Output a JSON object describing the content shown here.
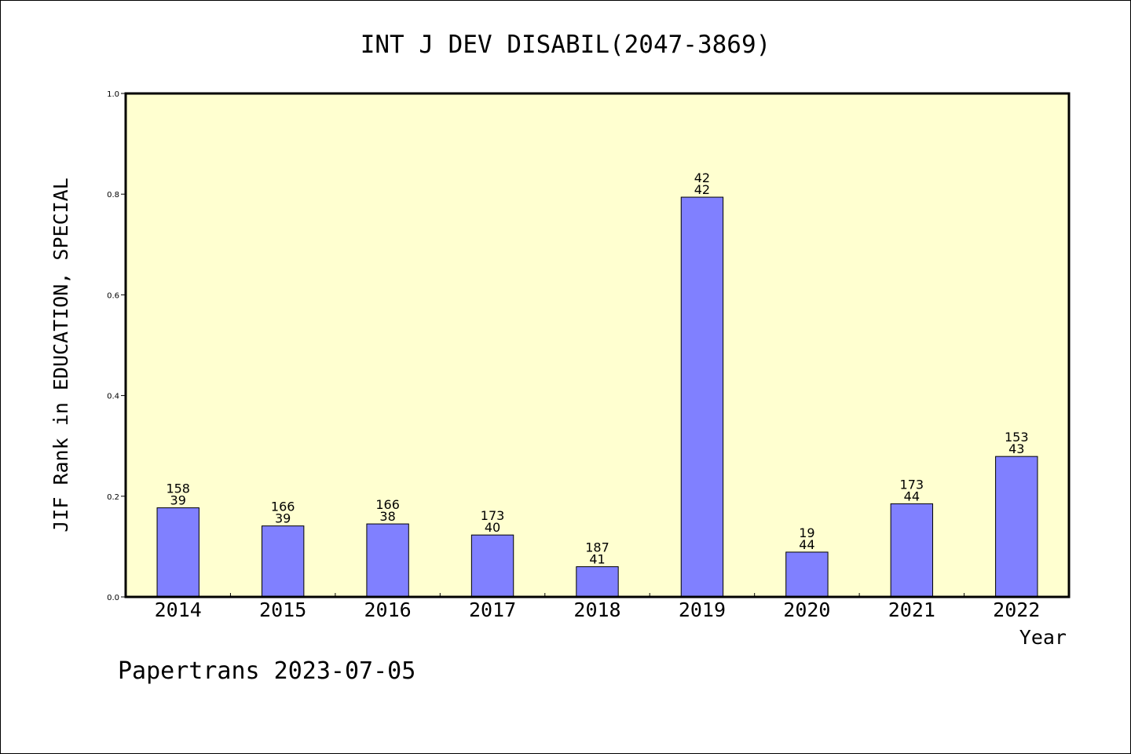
{
  "chart_data": {
    "type": "bar",
    "title": "INT J DEV DISABIL(2047-3869)",
    "xlabel": "Year",
    "ylabel": "JIF Rank in EDUCATION, SPECIAL",
    "ylim": [
      0,
      1.0
    ],
    "yticks": [
      "0.0",
      "0.2",
      "0.4",
      "0.6",
      "0.8",
      "1.0"
    ],
    "categories": [
      "2014",
      "2015",
      "2016",
      "2017",
      "2018",
      "2019",
      "2020",
      "2021",
      "2022"
    ],
    "values": [
      0.177,
      0.141,
      0.145,
      0.123,
      0.06,
      0.794,
      0.089,
      0.185,
      0.279
    ],
    "annotations": [
      [
        "158",
        "39"
      ],
      [
        "166",
        "39"
      ],
      [
        "166",
        "38"
      ],
      [
        "173",
        "40"
      ],
      [
        "187",
        "41"
      ],
      [
        "42",
        "42"
      ],
      [
        "19",
        "44"
      ],
      [
        "173",
        "44"
      ],
      [
        "153",
        "43"
      ]
    ],
    "grid": false,
    "colors": {
      "bar_fill": "#8080ff",
      "plot_bg": "#ffffd0",
      "bar_stroke": "#000000"
    }
  },
  "footer": "Papertrans 2023-07-05"
}
